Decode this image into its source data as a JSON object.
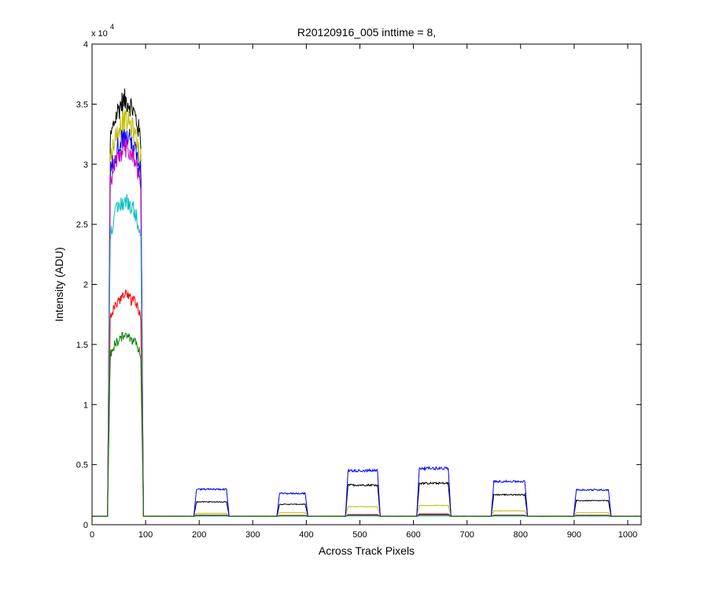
{
  "chart_data": {
    "type": "line",
    "title": "R20120916_005 inttime = 8,",
    "xlabel": "Across Track Pixels",
    "ylabel": "Intensity (ADU)",
    "exponent_label": {
      "base": "x 10",
      "power": "4"
    },
    "xlim": [
      0,
      1025
    ],
    "ylim": [
      0,
      40000
    ],
    "x_ticks": [
      0,
      100,
      200,
      300,
      400,
      500,
      600,
      700,
      800,
      900,
      1000
    ],
    "y_ticks": [
      0,
      5000,
      10000,
      15000,
      20000,
      25000,
      30000,
      35000,
      40000
    ],
    "y_tick_labels": [
      "0",
      "0.5",
      "1",
      "1.5",
      "2",
      "2.5",
      "3",
      "3.5",
      "4"
    ],
    "grid": false,
    "baseline": 700,
    "segments": [
      {
        "x": [
          32,
          93
        ]
      },
      {
        "x": [
          193,
          253
        ]
      },
      {
        "x": [
          348,
          400
        ]
      },
      {
        "x": [
          476,
          535
        ]
      },
      {
        "x": [
          609,
          667
        ]
      },
      {
        "x": [
          748,
          810
        ]
      },
      {
        "x": [
          902,
          966
        ]
      }
    ],
    "series": [
      {
        "color": "#000000",
        "levels": [
          31500,
          1900,
          1700,
          3300,
          3450,
          2500,
          2000
        ]
      },
      {
        "color": "#bfbf00",
        "levels": [
          30000,
          950,
          1000,
          1500,
          1600,
          1150,
          1000
        ]
      },
      {
        "color": "#0000ff",
        "levels": [
          28800,
          2950,
          2600,
          4500,
          4700,
          3600,
          2900
        ]
      },
      {
        "color": "#bf00bf",
        "levels": [
          28000,
          800,
          780,
          850,
          850,
          800,
          790
        ]
      },
      {
        "color": "#00bfbf",
        "levels": [
          24000,
          720,
          720,
          730,
          730,
          720,
          720
        ]
      },
      {
        "color": "#ff0000",
        "levels": [
          17000,
          780,
          760,
          800,
          900,
          780,
          760
        ]
      },
      {
        "color": "#008000",
        "levels": [
          14000,
          760,
          740,
          780,
          800,
          760,
          750
        ]
      }
    ]
  }
}
